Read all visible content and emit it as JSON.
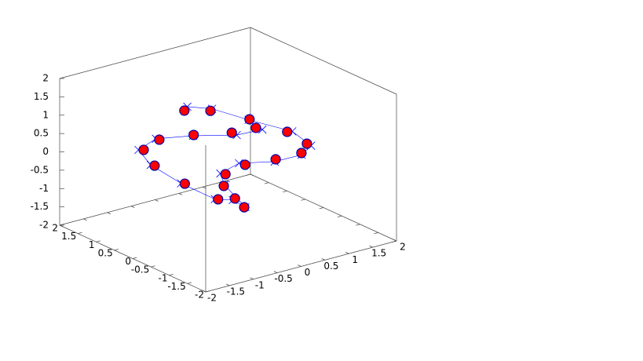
{
  "chart_data": {
    "type": "scatter3d",
    "xlim": [
      -2,
      2
    ],
    "ylim": [
      -2,
      2
    ],
    "zlim": [
      -2,
      2
    ],
    "xticks": [
      -2,
      -1.5,
      -1,
      -0.5,
      0,
      0.5,
      1,
      1.5,
      2
    ],
    "yticks": [
      -2,
      -1.5,
      -1,
      -0.5,
      0,
      0.5,
      1,
      1.5,
      2
    ],
    "zticks": [
      -2,
      -1.5,
      -1,
      -0.5,
      0,
      0.5,
      1,
      1.5,
      2
    ],
    "series": [
      {
        "style": "linespoints",
        "color": "#0000ff",
        "x": [
          -0.12,
          0.2,
          0.66,
          1.33,
          1.45,
          1.22,
          0.9,
          0.52,
          0.22,
          0.2,
          0.5,
          0.33,
          -0.2,
          -1.2,
          -1.3,
          -1.22,
          -0.9,
          -0.32,
          0.35,
          0.85
        ],
        "y": [
          0.96,
          0.7,
          0.3,
          -0.02,
          -0.38,
          -0.42,
          -0.1,
          0.38,
          0.5,
          0.36,
          0.18,
          0.3,
          0.1,
          -0.28,
          0.42,
          0.86,
          0.8,
          0.54,
          0.22,
          0.17
        ],
        "z": [
          1.05,
          1.0,
          0.72,
          0.32,
          0.05,
          -0.1,
          -0.32,
          -0.45,
          -0.68,
          -0.92,
          -1.55,
          -1.35,
          -1.05,
          -0.1,
          0.12,
          0.3,
          0.52,
          0.52,
          0.45,
          0.45
        ]
      },
      {
        "style": "points",
        "color": "#ff0000",
        "edge": "#0000aa",
        "x": [
          -0.22,
          0.12,
          0.71,
          1.27,
          1.4,
          1.27,
          0.96,
          0.61,
          0.29,
          0.14,
          0.43,
          0.35,
          -0.11,
          -1.16,
          -1.25,
          -1.15,
          -0.86,
          -0.27,
          0.3,
          0.76
        ],
        "y": [
          0.91,
          0.64,
          0.34,
          0.04,
          -0.33,
          -0.35,
          -0.05,
          0.33,
          0.45,
          0.3,
          0.12,
          0.27,
          0.13,
          -0.33,
          0.38,
          0.81,
          0.76,
          0.59,
          0.29,
          0.23
        ],
        "z": [
          1.0,
          1.0,
          0.7,
          0.3,
          0.1,
          -0.1,
          -0.3,
          -0.5,
          -0.7,
          -0.9,
          -1.5,
          -1.3,
          -1.1,
          -0.1,
          0.1,
          0.3,
          0.5,
          0.5,
          0.5,
          0.5
        ]
      }
    ]
  }
}
